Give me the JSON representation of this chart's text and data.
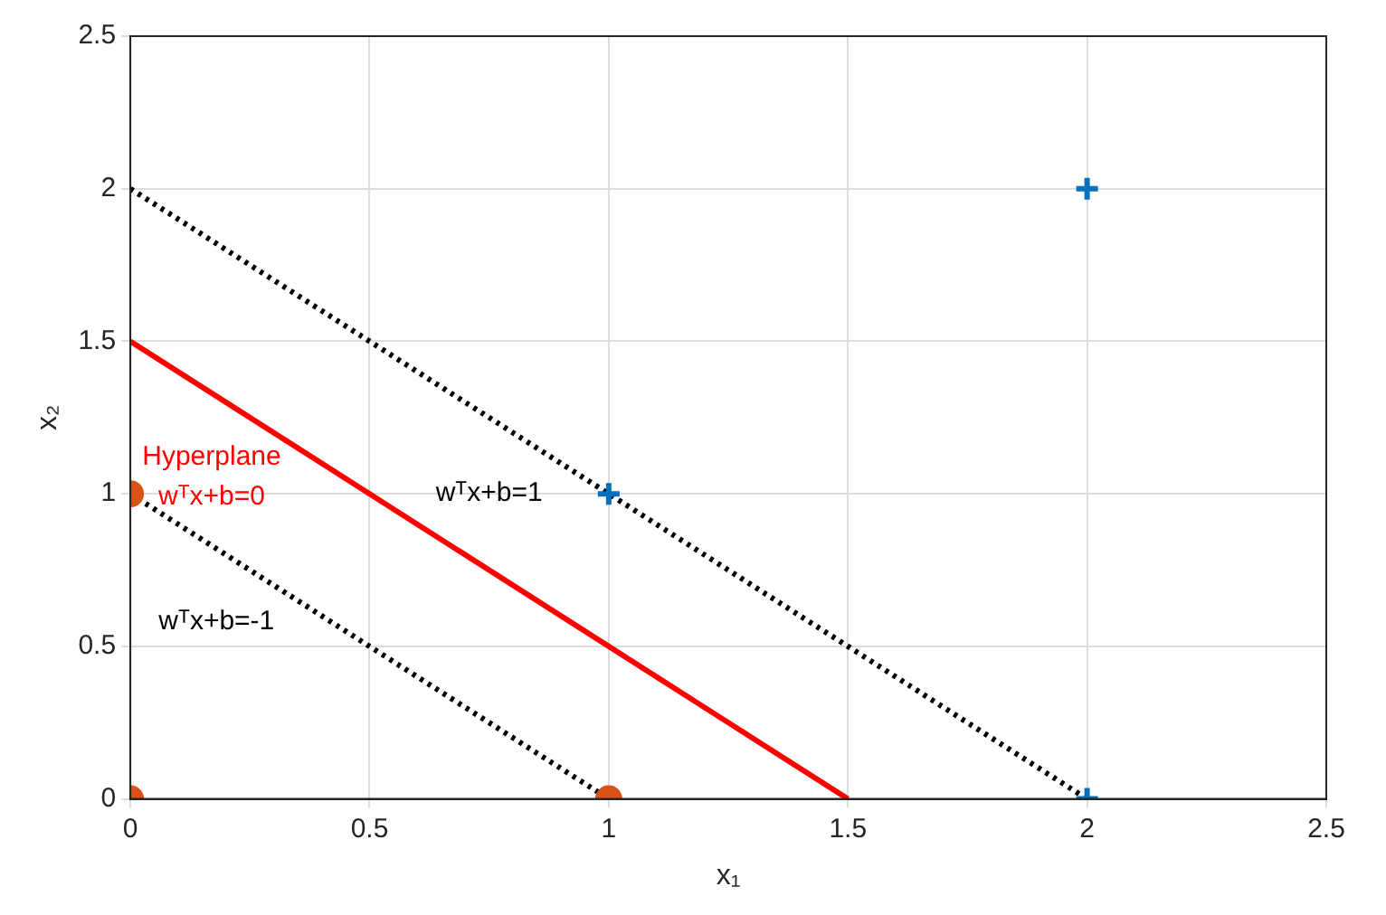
{
  "chart_data": {
    "type": "scatter",
    "xlabel": "x₁",
    "ylabel": "x₂",
    "xlim": [
      0,
      2.5
    ],
    "ylim": [
      0,
      2.5
    ],
    "xticks": [
      0,
      0.5,
      1,
      1.5,
      2,
      2.5
    ],
    "yticks": [
      0,
      0.5,
      1,
      1.5,
      2,
      2.5
    ],
    "grid": true,
    "legend": false,
    "series": [
      {
        "color": "#0072bd",
        "marker": "cross",
        "x": [
          2,
          1,
          2
        ],
        "values": [
          2,
          1,
          0
        ]
      },
      {
        "color": "#d95319",
        "marker": "circle",
        "x": [
          0,
          0,
          1
        ],
        "values": [
          1,
          0,
          0
        ]
      },
      {
        "type": "line",
        "color": "#ff0000",
        "line_style": "solid",
        "marker": "none",
        "x": [
          0,
          1.5
        ],
        "values": [
          1.5,
          0
        ]
      },
      {
        "type": "line",
        "color": "#000000",
        "line_style": "dotted",
        "marker": "none",
        "x": [
          0,
          2
        ],
        "values": [
          2,
          0
        ]
      },
      {
        "type": "line",
        "color": "#000000",
        "line_style": "dotted",
        "marker": "none",
        "x": [
          0,
          1
        ],
        "values": [
          1,
          0
        ]
      }
    ],
    "annotations": [
      "Hyperplane",
      "wᵀx+b=0",
      "wᵀx+b=1",
      "wᵀx+b=-1"
    ]
  }
}
